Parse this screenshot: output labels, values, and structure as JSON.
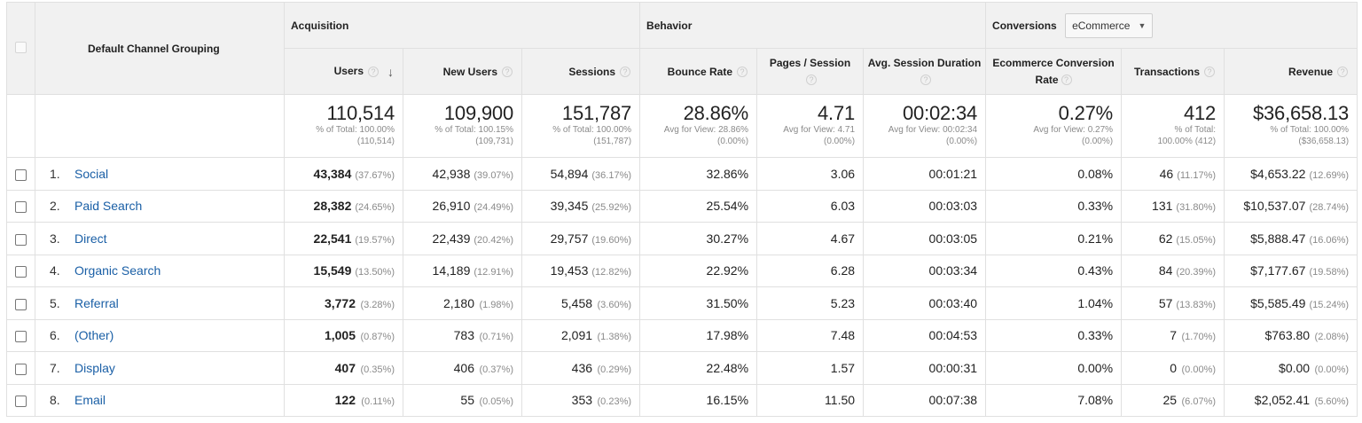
{
  "header": {
    "dimension_label": "Default Channel Grouping",
    "groups": {
      "acquisition": "Acquisition",
      "behavior": "Behavior",
      "conversions": "Conversions"
    },
    "conversion_select": "eCommerce",
    "columns": {
      "users": "Users",
      "new_users": "New Users",
      "sessions": "Sessions",
      "bounce_rate": "Bounce Rate",
      "pages_session": "Pages / Session",
      "avg_duration": "Avg. Session Duration",
      "ecom_rate_line1": "Ecommerce Conversion",
      "ecom_rate_line2": "Rate",
      "transactions": "Transactions",
      "revenue": "Revenue"
    }
  },
  "totals": {
    "users": {
      "value": "110,514",
      "l1": "% of Total: 100.00%",
      "l2": "(110,514)"
    },
    "new_users": {
      "value": "109,900",
      "l1": "% of Total: 100.15%",
      "l2": "(109,731)"
    },
    "sessions": {
      "value": "151,787",
      "l1": "% of Total: 100.00%",
      "l2": "(151,787)"
    },
    "bounce_rate": {
      "value": "28.86%",
      "l1": "Avg for View: 28.86%",
      "l2": "(0.00%)"
    },
    "pages_session": {
      "value": "4.71",
      "l1": "Avg for View: 4.71",
      "l2": "(0.00%)"
    },
    "avg_duration": {
      "value": "00:02:34",
      "l1": "Avg for View: 00:02:34",
      "l2": "(0.00%)"
    },
    "ecom_rate": {
      "value": "0.27%",
      "l1": "Avg for View: 0.27%",
      "l2": "(0.00%)"
    },
    "transactions": {
      "value": "412",
      "l1": "% of Total:",
      "l2": "100.00% (412)"
    },
    "revenue": {
      "value": "$36,658.13",
      "l1": "% of Total: 100.00%",
      "l2": "($36,658.13)"
    }
  },
  "rows": [
    {
      "idx": "1.",
      "name": "Social",
      "users": "43,384",
      "users_pct": "(37.67%)",
      "new_users": "42,938",
      "new_users_pct": "(39.07%)",
      "sessions": "54,894",
      "sessions_pct": "(36.17%)",
      "bounce": "32.86%",
      "pages": "3.06",
      "duration": "00:01:21",
      "ecom": "0.08%",
      "transactions": "46",
      "transactions_pct": "(11.17%)",
      "revenue": "$4,653.22",
      "revenue_pct": "(12.69%)"
    },
    {
      "idx": "2.",
      "name": "Paid Search",
      "users": "28,382",
      "users_pct": "(24.65%)",
      "new_users": "26,910",
      "new_users_pct": "(24.49%)",
      "sessions": "39,345",
      "sessions_pct": "(25.92%)",
      "bounce": "25.54%",
      "pages": "6.03",
      "duration": "00:03:03",
      "ecom": "0.33%",
      "transactions": "131",
      "transactions_pct": "(31.80%)",
      "revenue": "$10,537.07",
      "revenue_pct": "(28.74%)"
    },
    {
      "idx": "3.",
      "name": "Direct",
      "users": "22,541",
      "users_pct": "(19.57%)",
      "new_users": "22,439",
      "new_users_pct": "(20.42%)",
      "sessions": "29,757",
      "sessions_pct": "(19.60%)",
      "bounce": "30.27%",
      "pages": "4.67",
      "duration": "00:03:05",
      "ecom": "0.21%",
      "transactions": "62",
      "transactions_pct": "(15.05%)",
      "revenue": "$5,888.47",
      "revenue_pct": "(16.06%)"
    },
    {
      "idx": "4.",
      "name": "Organic Search",
      "users": "15,549",
      "users_pct": "(13.50%)",
      "new_users": "14,189",
      "new_users_pct": "(12.91%)",
      "sessions": "19,453",
      "sessions_pct": "(12.82%)",
      "bounce": "22.92%",
      "pages": "6.28",
      "duration": "00:03:34",
      "ecom": "0.43%",
      "transactions": "84",
      "transactions_pct": "(20.39%)",
      "revenue": "$7,177.67",
      "revenue_pct": "(19.58%)"
    },
    {
      "idx": "5.",
      "name": "Referral",
      "users": "3,772",
      "users_pct": "(3.28%)",
      "new_users": "2,180",
      "new_users_pct": "(1.98%)",
      "sessions": "5,458",
      "sessions_pct": "(3.60%)",
      "bounce": "31.50%",
      "pages": "5.23",
      "duration": "00:03:40",
      "ecom": "1.04%",
      "transactions": "57",
      "transactions_pct": "(13.83%)",
      "revenue": "$5,585.49",
      "revenue_pct": "(15.24%)"
    },
    {
      "idx": "6.",
      "name": "(Other)",
      "users": "1,005",
      "users_pct": "(0.87%)",
      "new_users": "783",
      "new_users_pct": "(0.71%)",
      "sessions": "2,091",
      "sessions_pct": "(1.38%)",
      "bounce": "17.98%",
      "pages": "7.48",
      "duration": "00:04:53",
      "ecom": "0.33%",
      "transactions": "7",
      "transactions_pct": "(1.70%)",
      "revenue": "$763.80",
      "revenue_pct": "(2.08%)"
    },
    {
      "idx": "7.",
      "name": "Display",
      "users": "407",
      "users_pct": "(0.35%)",
      "new_users": "406",
      "new_users_pct": "(0.37%)",
      "sessions": "436",
      "sessions_pct": "(0.29%)",
      "bounce": "22.48%",
      "pages": "1.57",
      "duration": "00:00:31",
      "ecom": "0.00%",
      "transactions": "0",
      "transactions_pct": "(0.00%)",
      "revenue": "$0.00",
      "revenue_pct": "(0.00%)"
    },
    {
      "idx": "8.",
      "name": "Email",
      "users": "122",
      "users_pct": "(0.11%)",
      "new_users": "55",
      "new_users_pct": "(0.05%)",
      "sessions": "353",
      "sessions_pct": "(0.23%)",
      "bounce": "16.15%",
      "pages": "11.50",
      "duration": "00:07:38",
      "ecom": "7.08%",
      "transactions": "25",
      "transactions_pct": "(6.07%)",
      "revenue": "$2,052.41",
      "revenue_pct": "(5.60%)"
    }
  ]
}
